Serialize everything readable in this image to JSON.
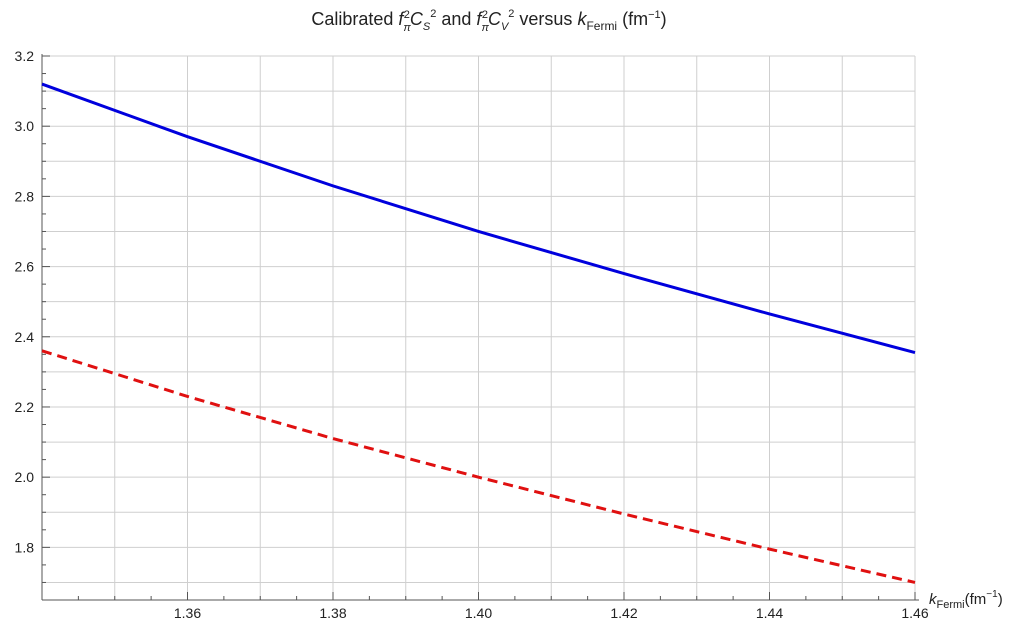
{
  "chart_data": {
    "type": "line",
    "title": {
      "prefix": "Calibrated ",
      "and": " and ",
      "versus": " versus ",
      "k": "k",
      "fermi_sub": "Fermi",
      "unit_open": " (fm",
      "unit_exp": "−1",
      "unit_close": ")"
    },
    "xlabel": {
      "k": "k",
      "sub": "Fermi",
      "unit_open": "(fm",
      "unit_exp": "−1",
      "unit_close": ")"
    },
    "ylabel": "",
    "xlim": [
      1.34,
      1.46
    ],
    "ylim": [
      1.65,
      3.2
    ],
    "x_ticks": [
      "1.36",
      "1.38",
      "1.40",
      "1.42",
      "1.44",
      "1.46"
    ],
    "y_ticks": [
      "1.8",
      "2.0",
      "2.2",
      "2.4",
      "2.6",
      "2.8",
      "3.0",
      "3.2"
    ],
    "grid": true,
    "legend": "none",
    "series": [
      {
        "style": "solid",
        "color": "#0000dd",
        "x": [
          1.34,
          1.36,
          1.38,
          1.4,
          1.42,
          1.44,
          1.46
        ],
        "y": [
          3.12,
          2.97,
          2.83,
          2.7,
          2.58,
          2.465,
          2.355
        ]
      },
      {
        "style": "dashed",
        "color": "#e01010",
        "x": [
          1.34,
          1.36,
          1.38,
          1.4,
          1.42,
          1.44,
          1.46
        ],
        "y": [
          2.36,
          2.23,
          2.11,
          2.0,
          1.895,
          1.795,
          1.7
        ]
      }
    ]
  }
}
